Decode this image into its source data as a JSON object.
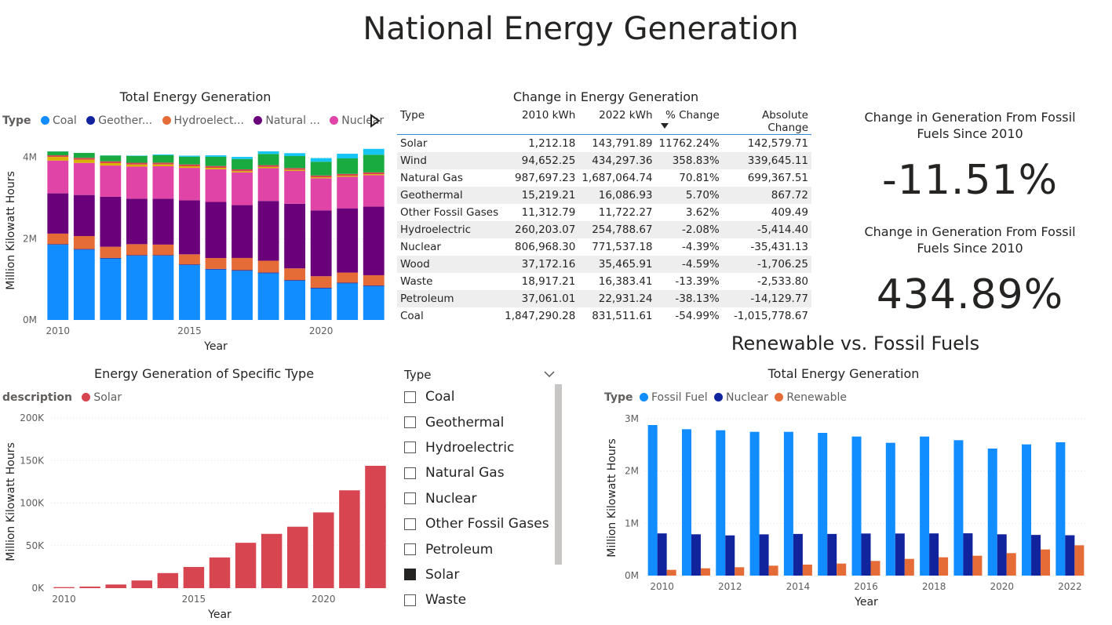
{
  "page_title": "National Energy Generation",
  "colors": {
    "coal": "#118DFF",
    "geothermal": "#12239E",
    "hydro": "#E66C37",
    "natgas": "#6B007B",
    "nuclear": "#E044A7",
    "c6": "#D9B300",
    "c7": "#D64550",
    "c8": "#1AAB40",
    "c9": "#15C6F4",
    "solar": "#D64550",
    "fossil": "#118DFF",
    "nuclear2": "#12239E",
    "renewable": "#E66C37"
  },
  "stacked": {
    "title": "Total Energy Generation",
    "legend_title": "Type",
    "legend_items": [
      "Coal",
      "Geother...",
      "Hydroelect...",
      "Natural ...",
      "Nuclear"
    ],
    "more_icon": "play-icon",
    "xlabel": "Year",
    "ylabel": "Million Kilowatt Hours",
    "y_ticks": [
      "0M",
      "2M",
      "4M"
    ],
    "x_ticks": [
      "2010",
      "2015",
      "2020"
    ]
  },
  "table": {
    "title": "Change in Energy Generation",
    "headers": [
      "Type",
      "2010 kWh",
      "2022 kWh",
      "% Change",
      "Absolute Change"
    ],
    "sort_icon": "sort-down-icon",
    "rows": [
      [
        "Solar",
        "1,212.18",
        "143,791.89",
        "11762.24%",
        "142,579.71"
      ],
      [
        "Wind",
        "94,652.25",
        "434,297.36",
        "358.83%",
        "339,645.11"
      ],
      [
        "Natural Gas",
        "987,697.23",
        "1,687,064.74",
        "70.81%",
        "699,367.51"
      ],
      [
        "Geothermal",
        "15,219.21",
        "16,086.93",
        "5.70%",
        "867.72"
      ],
      [
        "Other Fossil Gases",
        "11,312.79",
        "11,722.27",
        "3.62%",
        "409.49"
      ],
      [
        "Hydroelectric",
        "260,203.07",
        "254,788.67",
        "-2.08%",
        "-5,414.40"
      ],
      [
        "Nuclear",
        "806,968.30",
        "771,537.18",
        "-4.39%",
        "-35,431.13"
      ],
      [
        "Wood",
        "37,172.16",
        "35,465.91",
        "-4.59%",
        "-1,706.25"
      ],
      [
        "Waste",
        "18,917.21",
        "16,383.41",
        "-13.39%",
        "-2,533.80"
      ],
      [
        "Petroleum",
        "37,061.01",
        "22,931.24",
        "-38.13%",
        "-14,129.77"
      ],
      [
        "Coal",
        "1,847,290.28",
        "831,511.61",
        "-54.99%",
        "-1,015,778.67"
      ]
    ]
  },
  "kpi1": {
    "label": "Change in Generation From Fossil Fuels Since 2010",
    "value": "-11.51%"
  },
  "kpi2": {
    "label": "Change in Generation From Fossil Fuels Since 2010",
    "value": "434.89%"
  },
  "solar": {
    "title": "Energy Generation of Specific Type",
    "legend_title": "description",
    "legend_item": "Solar",
    "xlabel": "Year",
    "ylabel": "Million Kilowatt Hours",
    "y_ticks": [
      "0K",
      "50K",
      "100K",
      "150K",
      "200K"
    ],
    "x_ticks": [
      "2010",
      "2015",
      "2020"
    ]
  },
  "slicer": {
    "title": "Type",
    "chevron_icon": "chevron-down-icon",
    "items": [
      {
        "label": "Coal",
        "checked": false
      },
      {
        "label": "Geothermal",
        "checked": false
      },
      {
        "label": "Hydroelectric",
        "checked": false
      },
      {
        "label": "Natural Gas",
        "checked": false
      },
      {
        "label": "Nuclear",
        "checked": false
      },
      {
        "label": "Other Fossil Gases",
        "checked": false
      },
      {
        "label": "Petroleum",
        "checked": false
      },
      {
        "label": "Solar",
        "checked": true
      },
      {
        "label": "Waste",
        "checked": false
      }
    ]
  },
  "renew": {
    "section_title": "Renewable vs. Fossil Fuels",
    "title": "Total Energy Generation",
    "legend_title": "Type",
    "legend_items": [
      "Fossil Fuel",
      "Nuclear",
      "Renewable"
    ],
    "xlabel": "Year",
    "ylabel": "Million Kilowatt Hours",
    "y_ticks": [
      "0M",
      "1M",
      "2M",
      "3M"
    ],
    "x_ticks": [
      "2010",
      "2012",
      "2014",
      "2016",
      "2018",
      "2020",
      "2022"
    ]
  },
  "chart_data": [
    {
      "type": "bar",
      "stacked": true,
      "title": "Total Energy Generation",
      "xlabel": "Year",
      "ylabel": "Million Kilowatt Hours",
      "ylim": [
        0,
        4400000
      ],
      "categories": [
        2010,
        2011,
        2012,
        2013,
        2014,
        2015,
        2016,
        2017,
        2018,
        2019,
        2020,
        2021,
        2022
      ],
      "series": [
        {
          "name": "Coal",
          "values": [
            1850000,
            1730000,
            1510000,
            1580000,
            1580000,
            1350000,
            1240000,
            1210000,
            1150000,
            965000,
            775000,
            900000,
            830000
          ]
        },
        {
          "name": "Geothermal",
          "values": [
            15000,
            15000,
            15000,
            16000,
            16000,
            16000,
            16000,
            16000,
            16000,
            16000,
            16000,
            16000,
            16000
          ]
        },
        {
          "name": "Hydroelectric",
          "values": [
            260000,
            320000,
            276000,
            269000,
            259000,
            249000,
            268000,
            300000,
            292000,
            288000,
            285000,
            251000,
            255000
          ]
        },
        {
          "name": "Natural ...",
          "values": [
            990000,
            1010000,
            1230000,
            1120000,
            1130000,
            1330000,
            1380000,
            1300000,
            1470000,
            1590000,
            1620000,
            1580000,
            1690000
          ]
        },
        {
          "name": "Nuclear",
          "values": [
            807000,
            790000,
            769000,
            789000,
            797000,
            797000,
            805000,
            805000,
            807000,
            809000,
            790000,
            778000,
            772000
          ]
        },
        {
          "values": [
            90000,
            80000,
            60000,
            50000,
            45000,
            40000,
            35000,
            30000,
            30000,
            25000,
            25000,
            25000,
            25000
          ]
        },
        {
          "values": [
            40000,
            45000,
            45000,
            45000,
            45000,
            45000,
            45000,
            45000,
            45000,
            45000,
            45000,
            45000,
            45000
          ]
        },
        {
          "values": [
            95000,
            120000,
            140000,
            168000,
            182000,
            191000,
            227000,
            254000,
            275000,
            295000,
            338000,
            380000,
            434000
          ]
        },
        {
          "values": [
            2000,
            2000,
            4000,
            9000,
            18000,
            25000,
            36000,
            53000,
            64000,
            72000,
            89000,
            115000,
            144000
          ]
        }
      ]
    },
    {
      "type": "bar",
      "title": "Energy Generation of Specific Type",
      "xlabel": "Year",
      "ylabel": "Million Kilowatt Hours",
      "ylim": [
        0,
        200000
      ],
      "categories": [
        2010,
        2011,
        2012,
        2013,
        2014,
        2015,
        2016,
        2017,
        2018,
        2019,
        2020,
        2021,
        2022
      ],
      "series": [
        {
          "name": "Solar",
          "values": [
            1212,
            1800,
            4300,
            9000,
            17700,
            24900,
            36100,
            53300,
            63800,
            72200,
            89000,
            115000,
            143792
          ]
        }
      ]
    },
    {
      "type": "bar",
      "title": "Total Energy Generation",
      "xlabel": "Year",
      "ylabel": "Million Kilowatt Hours",
      "ylim": [
        0,
        3000000
      ],
      "categories": [
        2010,
        2011,
        2012,
        2013,
        2014,
        2015,
        2016,
        2017,
        2018,
        2019,
        2020,
        2021,
        2022
      ],
      "series": [
        {
          "name": "Fossil Fuel",
          "values": [
            2880000,
            2800000,
            2780000,
            2750000,
            2750000,
            2730000,
            2660000,
            2540000,
            2660000,
            2590000,
            2430000,
            2510000,
            2550000
          ]
        },
        {
          "name": "Nuclear",
          "values": [
            807000,
            790000,
            769000,
            789000,
            797000,
            797000,
            805000,
            805000,
            807000,
            809000,
            790000,
            778000,
            772000
          ]
        },
        {
          "name": "Renewable",
          "values": [
            110000,
            140000,
            160000,
            190000,
            210000,
            230000,
            280000,
            320000,
            350000,
            380000,
            430000,
            500000,
            580000
          ]
        }
      ]
    }
  ]
}
